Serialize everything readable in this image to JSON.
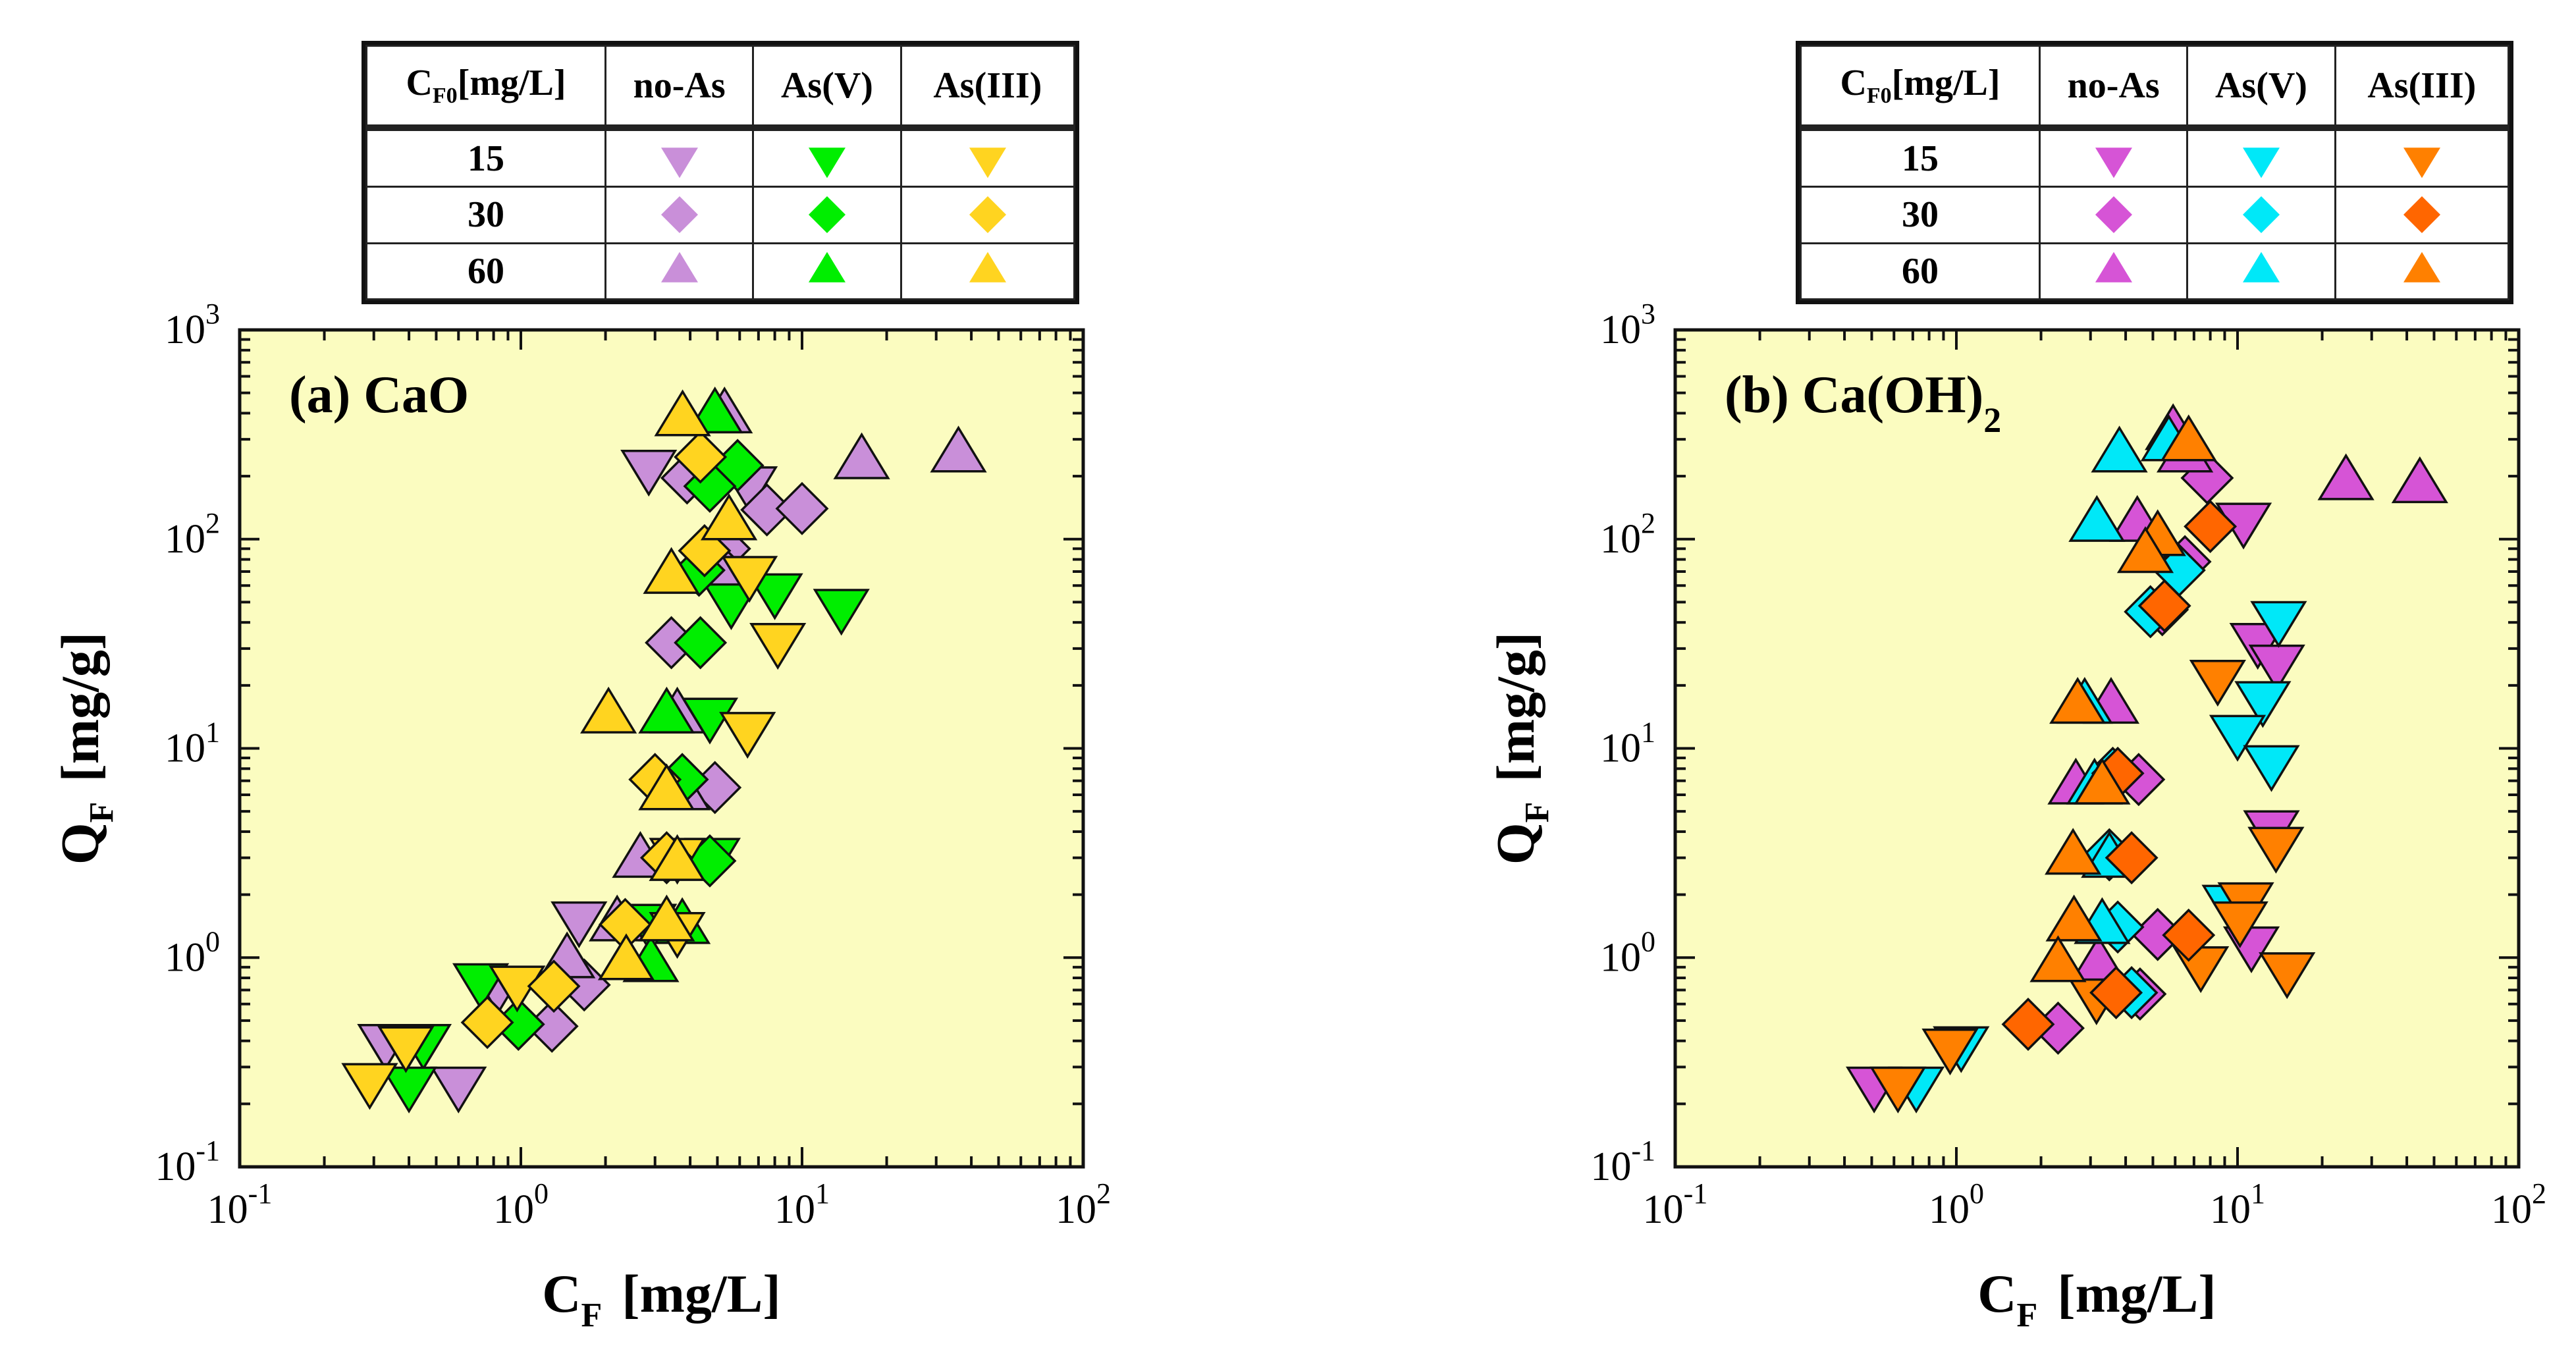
{
  "legend": {
    "header": {
      "c_label": "C",
      "c_sub": "F0",
      "c_unit": "[mg/L]",
      "cols": [
        "no-As",
        "As(V)",
        "As(III)"
      ]
    },
    "rows": [
      "15",
      "30",
      "60"
    ],
    "row_shapes": [
      "triangle-down",
      "diamond",
      "triangle-up"
    ]
  },
  "chart_data": [
    {
      "type": "scatter",
      "title": "(a) CaO",
      "title_main": "(a) CaO",
      "title_sub": "",
      "xlabel": "C",
      "xlabel_sub": "F",
      "xlabel_unit": "[mg/L]",
      "ylabel": "Q",
      "ylabel_sub": "F",
      "ylabel_unit": "[mg/g]",
      "xscale": "log",
      "yscale": "log",
      "xlim": [
        0.1,
        100
      ],
      "ylim": [
        0.1,
        1000
      ],
      "x_tick_exponents": [
        -1,
        0,
        1,
        2
      ],
      "y_tick_exponents": [
        -1,
        0,
        1,
        2,
        3
      ],
      "tick_base": "10",
      "background": "#fbfcc0",
      "legend_placement": "top (table)",
      "series": [
        {
          "name": "no-As",
          "c_f0": 15,
          "shape": "triangle-down",
          "color": "#c98fd9",
          "points": [
            [
              2.85,
              222
            ],
            [
              6.5,
              185
            ],
            [
              1.61,
              1.54
            ],
            [
              0.83,
              0.74
            ],
            [
              0.33,
              0.4
            ],
            [
              0.6,
              0.25
            ]
          ]
        },
        {
          "name": "no-As",
          "c_f0": 30,
          "shape": "diamond",
          "color": "#c98fd9",
          "points": [
            [
              3.9,
              196
            ],
            [
              7.5,
              138
            ],
            [
              10,
              140
            ],
            [
              5.3,
              90
            ],
            [
              5.4,
              67
            ],
            [
              3.43,
              32
            ],
            [
              4.9,
              6.5
            ],
            [
              1.68,
              0.74
            ],
            [
              1.29,
              0.47
            ]
          ]
        },
        {
          "name": "no-As",
          "c_f0": 60,
          "shape": "triangle-up",
          "color": "#c98fd9",
          "points": [
            [
              5.3,
              386
            ],
            [
              16.3,
              233
            ],
            [
              36,
              251
            ],
            [
              3.6,
              14.2
            ],
            [
              3.75,
              6.1
            ],
            [
              2.66,
              2.9
            ],
            [
              2.2,
              1.44
            ],
            [
              1.46,
              0.96
            ]
          ]
        },
        {
          "name": "As(V)",
          "c_f0": 15,
          "shape": "triangle-down",
          "color": "#00ee00",
          "points": [
            [
              8,
              57
            ],
            [
              5.6,
              51
            ],
            [
              13.8,
              48
            ],
            [
              4.7,
              14.5
            ],
            [
              4.8,
              3.1
            ],
            [
              2.85,
              1.5
            ],
            [
              0.72,
              0.78
            ],
            [
              0.45,
              0.4
            ],
            [
              0.4,
              0.25
            ]
          ]
        },
        {
          "name": "As(V)",
          "c_f0": 30,
          "shape": "diamond",
          "color": "#00ee00",
          "points": [
            [
              5.9,
              225
            ],
            [
              4.7,
              179
            ],
            [
              4.3,
              71
            ],
            [
              4.35,
              32
            ],
            [
              3.75,
              7.1
            ],
            [
              4.7,
              2.9
            ],
            [
              0.98,
              0.48
            ]
          ]
        },
        {
          "name": "As(V)",
          "c_f0": 60,
          "shape": "triangle-up",
          "color": "#00ee00",
          "points": [
            [
              4.9,
              386
            ],
            [
              3.3,
              14.2
            ],
            [
              3.75,
              1.4
            ],
            [
              2.9,
              0.92
            ]
          ]
        },
        {
          "name": "As(III)",
          "c_f0": 15,
          "shape": "triangle-down",
          "color": "#ffd420",
          "points": [
            [
              6.5,
              69
            ],
            [
              8.2,
              33
            ],
            [
              6.4,
              12.4
            ],
            [
              3.6,
              3.1
            ],
            [
              3.6,
              1.37
            ],
            [
              0.97,
              0.76
            ],
            [
              0.39,
              0.39
            ],
            [
              0.29,
              0.26
            ]
          ]
        },
        {
          "name": "As(III)",
          "c_f0": 30,
          "shape": "diamond",
          "color": "#ffd420",
          "points": [
            [
              4.35,
              247
            ],
            [
              4.5,
              88
            ],
            [
              3,
              7.1
            ],
            [
              3.3,
              3.0
            ],
            [
              2.35,
              1.44
            ],
            [
              1.31,
              0.73
            ],
            [
              0.76,
              0.49
            ]
          ]
        },
        {
          "name": "As(III)",
          "c_f0": 60,
          "shape": "triangle-up",
          "color": "#ffd420",
          "points": [
            [
              3.76,
              374
            ],
            [
              5.5,
              119
            ],
            [
              3.43,
              66
            ],
            [
              2.05,
              14.2
            ],
            [
              3.3,
              6.1
            ],
            [
              3.6,
              2.8
            ],
            [
              3.3,
              1.44
            ],
            [
              2.37,
              0.94
            ]
          ]
        }
      ]
    },
    {
      "type": "scatter",
      "title": "(b) Ca(OH)2",
      "title_main": "(b) Ca(OH)",
      "title_sub": "2",
      "xlabel": "C",
      "xlabel_sub": "F",
      "xlabel_unit": "[mg/L]",
      "ylabel": "Q",
      "ylabel_sub": "F",
      "ylabel_unit": "[mg/g]",
      "xscale": "log",
      "yscale": "log",
      "xlim": [
        0.1,
        100
      ],
      "ylim": [
        0.1,
        1000
      ],
      "x_tick_exponents": [
        -1,
        0,
        1,
        2
      ],
      "y_tick_exponents": [
        -1,
        0,
        1,
        2,
        3
      ],
      "tick_base": "10",
      "background": "#fbfcc0",
      "legend_placement": "top (table)",
      "series": [
        {
          "name": "no-As",
          "c_f0": 15,
          "shape": "triangle-down",
          "color": "#d654d6",
          "points": [
            [
              10.5,
              124
            ],
            [
              11.8,
              33
            ],
            [
              13.8,
              26
            ],
            [
              13.2,
              4.2
            ],
            [
              11.2,
              1.17
            ],
            [
              0.51,
              0.25
            ]
          ]
        },
        {
          "name": "no-As",
          "c_f0": 30,
          "shape": "diamond",
          "color": "#d654d6",
          "points": [
            [
              7.8,
              196
            ],
            [
              6.5,
              78
            ],
            [
              5.4,
              46
            ],
            [
              4.45,
              7.1
            ],
            [
              5.2,
              1.29
            ],
            [
              4.5,
              0.67
            ],
            [
              2.3,
              0.46
            ]
          ]
        },
        {
          "name": "no-As",
          "c_f0": 60,
          "shape": "triangle-up",
          "color": "#d654d6",
          "points": [
            [
              5.9,
              321
            ],
            [
              6.5,
              251
            ],
            [
              24.3,
              185
            ],
            [
              44.5,
              179
            ],
            [
              4.4,
              117
            ],
            [
              3.55,
              15.8
            ],
            [
              2.66,
              6.5
            ],
            [
              3.2,
              0.92
            ]
          ]
        },
        {
          "name": "As(V)",
          "c_f0": 15,
          "shape": "triangle-down",
          "color": "#00e8f8",
          "points": [
            [
              14,
              42
            ],
            [
              12.3,
              17.4
            ],
            [
              10,
              12
            ],
            [
              13.2,
              8.6
            ],
            [
              9.4,
              1.85
            ],
            [
              1.04,
              0.39
            ],
            [
              0.72,
              0.25
            ]
          ]
        },
        {
          "name": "As(V)",
          "c_f0": 30,
          "shape": "diamond",
          "color": "#00e8f8",
          "points": [
            [
              6.2,
              71
            ],
            [
              4.9,
              45
            ],
            [
              3.6,
              7.6
            ],
            [
              3.5,
              3.1
            ],
            [
              3.75,
              1.4
            ],
            [
              4.2,
              0.68
            ]
          ]
        },
        {
          "name": "As(V)",
          "c_f0": 60,
          "shape": "triangle-up",
          "color": "#00e8f8",
          "points": [
            [
              5.7,
              284
            ],
            [
              3.8,
              251
            ],
            [
              3.16,
              117
            ],
            [
              2.86,
              15.8
            ],
            [
              3.1,
              6.5
            ],
            [
              3.5,
              2.9
            ],
            [
              3.3,
              1.4
            ]
          ]
        },
        {
          "name": "As(III)",
          "c_f0": 15,
          "shape": "triangle-down",
          "color": "#ff8000",
          "points": [
            [
              8.5,
              22
            ],
            [
              13.7,
              3.5
            ],
            [
              10.7,
              1.9
            ],
            [
              10.2,
              1.54
            ],
            [
              15,
              0.88
            ],
            [
              7.4,
              0.94
            ],
            [
              3.15,
              0.66
            ],
            [
              0.95,
              0.38
            ],
            [
              0.62,
              0.25
            ]
          ]
        },
        {
          "name": "As(III)",
          "c_f0": 30,
          "shape": "diamond",
          "color": "#ff6600",
          "points": [
            [
              8,
              115
            ],
            [
              5.5,
              48
            ],
            [
              3.75,
              7.6
            ],
            [
              4.2,
              3.0
            ],
            [
              6.7,
              1.28
            ],
            [
              3.7,
              0.68
            ],
            [
              1.8,
              0.48
            ]
          ]
        },
        {
          "name": "As(III)",
          "c_f0": 60,
          "shape": "triangle-up",
          "color": "#ff8000",
          "points": [
            [
              6.7,
              284
            ],
            [
              5.2,
              100
            ],
            [
              4.7,
              83
            ],
            [
              2.7,
              15.8
            ],
            [
              3.3,
              6.5
            ],
            [
              2.6,
              3.0
            ],
            [
              2.62,
              1.44
            ],
            [
              2.3,
              0.92
            ]
          ]
        }
      ]
    }
  ]
}
